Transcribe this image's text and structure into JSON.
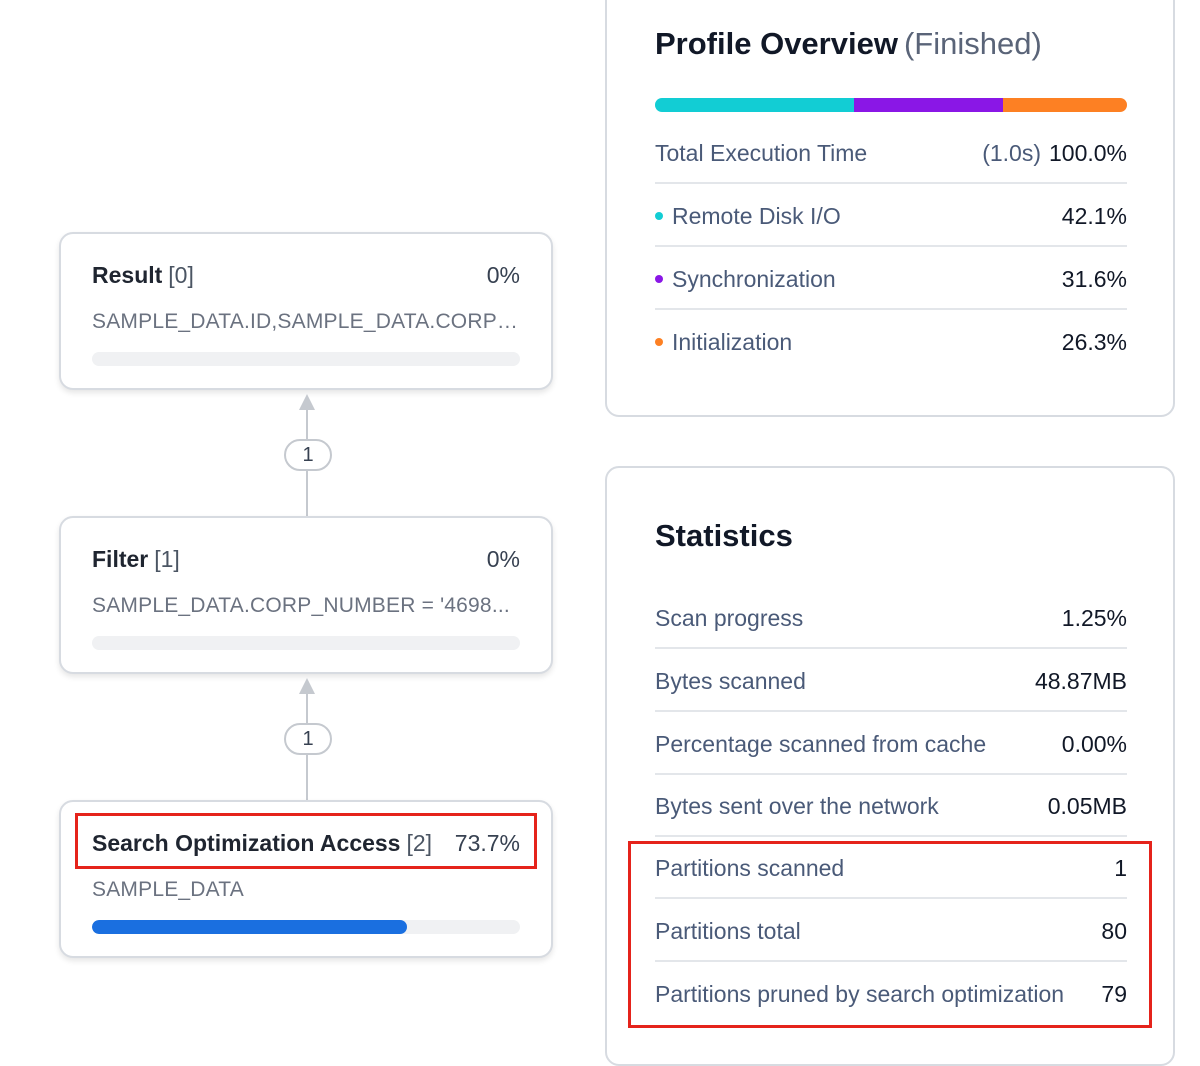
{
  "graph": {
    "nodes": [
      {
        "name": "Result",
        "index": "[0]",
        "percent": "0%",
        "detail": "SAMPLE_DATA.ID,SAMPLE_DATA.CORP_NUMBER",
        "progress": 0
      },
      {
        "name": "Filter",
        "index": "[1]",
        "percent": "0%",
        "detail": "SAMPLE_DATA.CORP_NUMBER = '4698...",
        "progress": 0
      },
      {
        "name": "Search Optimization Access",
        "index": "[2]",
        "percent": "73.7%",
        "detail": "SAMPLE_DATA",
        "progress": 73.7
      }
    ],
    "edges": [
      "1",
      "1"
    ]
  },
  "profile": {
    "title": "Profile Overview",
    "status": "(Finished)",
    "segments": [
      {
        "value": 42.1,
        "color": "#12cdd4"
      },
      {
        "value": 31.6,
        "color": "#8a17e6"
      },
      {
        "value": 26.3,
        "color": "#fd8023"
      }
    ],
    "total": {
      "label": "Total Execution Time",
      "duration": "(1.0s)",
      "value": "100.0%"
    },
    "rows": [
      {
        "label": "Remote Disk I/O",
        "value": "42.1%",
        "color": "#12cdd4"
      },
      {
        "label": "Synchronization",
        "value": "31.6%",
        "color": "#8a17e6"
      },
      {
        "label": "Initialization",
        "value": "26.3%",
        "color": "#fd8023"
      }
    ]
  },
  "statistics": {
    "title": "Statistics",
    "rows": [
      {
        "label": "Scan progress",
        "value": "1.25%"
      },
      {
        "label": "Bytes scanned",
        "value": "48.87MB"
      },
      {
        "label": "Percentage scanned from cache",
        "value": "0.00%"
      },
      {
        "label": "Bytes sent over the network",
        "value": "0.05MB"
      },
      {
        "label": "Partitions scanned",
        "value": "1"
      },
      {
        "label": "Partitions total",
        "value": "80"
      },
      {
        "label": "Partitions pruned by search optimization",
        "value": "79"
      }
    ]
  },
  "highlight_color": "#e5231b"
}
